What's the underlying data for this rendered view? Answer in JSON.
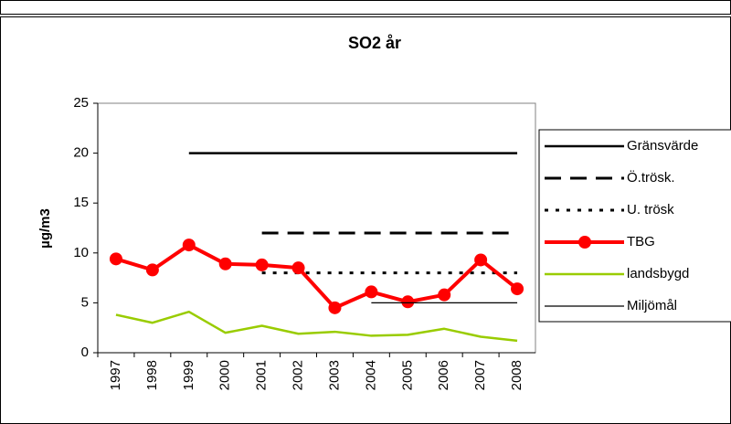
{
  "chart_data": {
    "type": "line",
    "title": "SO2 år",
    "y_label": "µg/m3",
    "categories": [
      "1997",
      "1998",
      "1999",
      "2000",
      "2001",
      "2002",
      "2003",
      "2004",
      "2005",
      "2006",
      "2007",
      "2008"
    ],
    "series": [
      {
        "name": "Gränsvärde",
        "color": "#000000",
        "line_style": "solid",
        "values": [
          null,
          null,
          20,
          20,
          20,
          20,
          20,
          20,
          20,
          20,
          20,
          20
        ]
      },
      {
        "name": "Ö.trösk.",
        "color": "#000000",
        "line_style": "dashed",
        "values": [
          null,
          null,
          null,
          null,
          12,
          12,
          12,
          12,
          12,
          12,
          12,
          12
        ]
      },
      {
        "name": "U. trösk",
        "color": "#000000",
        "line_style": "dotted",
        "values": [
          null,
          null,
          null,
          null,
          8,
          8,
          8,
          8,
          8,
          8,
          8,
          8
        ]
      },
      {
        "name": "TBG",
        "color": "#ff0000",
        "line_style": "solid",
        "marker": true,
        "values": [
          9.4,
          8.3,
          10.8,
          8.9,
          8.8,
          8.5,
          4.5,
          6.1,
          5.1,
          5.8,
          9.3,
          6.4
        ]
      },
      {
        "name": "landsbygd",
        "color": "#99cc00",
        "line_style": "solid",
        "values": [
          3.8,
          3.0,
          4.1,
          2.0,
          2.7,
          1.9,
          2.1,
          1.7,
          1.8,
          2.4,
          1.6,
          1.2
        ]
      },
      {
        "name": "Miljömål",
        "color": "#000000",
        "line_style": "thin",
        "values": [
          null,
          null,
          null,
          null,
          null,
          null,
          null,
          5,
          5,
          5,
          5,
          5
        ]
      }
    ],
    "ylim": [
      0,
      25
    ],
    "yticks": [
      0,
      5,
      10,
      15,
      20,
      25
    ],
    "legend": "right"
  }
}
